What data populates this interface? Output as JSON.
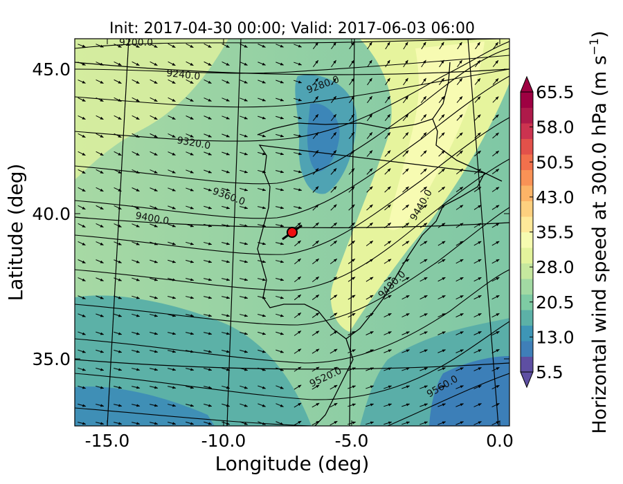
{
  "title": "Init: 2017-04-30 00:00; Valid: 2017-06-03 06:00",
  "xlabel": "Longitude (deg)",
  "ylabel": "Latitude (deg)",
  "colorbar_label": "Horizontal wind speed at 300.0 hPa (m s",
  "colorbar_label_sup": "−1",
  "colorbar_label_end": ")",
  "xticks": [
    {
      "value": -15.0,
      "label": "-15.0"
    },
    {
      "value": -10.0,
      "label": "-10.0"
    },
    {
      "value": -5.0,
      "label": "-5.0"
    },
    {
      "value": 0.0,
      "label": "0.0"
    }
  ],
  "yticks": [
    {
      "value": 45.0,
      "label": "45.0"
    },
    {
      "value": 40.0,
      "label": "40.0"
    },
    {
      "value": 35.0,
      "label": "35.0"
    }
  ],
  "colorbar": {
    "ticks": [
      "65.5",
      "58.0",
      "50.5",
      "43.0",
      "35.5",
      "28.0",
      "20.5",
      "13.0",
      "5.5"
    ],
    "min": 5.5,
    "max": 65.5,
    "colors": [
      "#5e4fa2",
      "#3f7fb8",
      "#3e96b6",
      "#5cb1a7",
      "#7ecba4",
      "#a2d9a3",
      "#c6e89e",
      "#e3f39c",
      "#f6fbb0",
      "#fee999",
      "#fdd07f",
      "#fcb467",
      "#f99256",
      "#f2704c",
      "#e2514a",
      "#cc3350",
      "#ae1a4a",
      "#9e0142"
    ]
  },
  "contours": [
    {
      "label": "9200.0"
    },
    {
      "label": "9240.0"
    },
    {
      "label": "9280.0"
    },
    {
      "label": "9320.0"
    },
    {
      "label": "9360.0"
    },
    {
      "label": "9400.0"
    },
    {
      "label": "9440.0"
    },
    {
      "label": "9480.0"
    },
    {
      "label": "9520.0"
    },
    {
      "label": "9560.0"
    }
  ],
  "marker": {
    "lon": -7.6,
    "lat": 39.3,
    "color": "#ee1111"
  },
  "region": "Iberian Peninsula"
}
